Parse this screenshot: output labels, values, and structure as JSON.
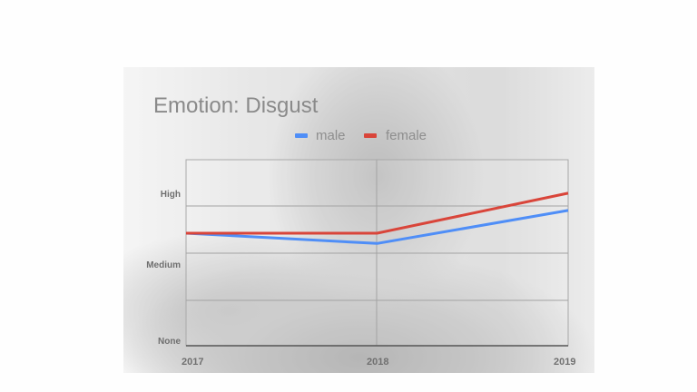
{
  "chart_data": {
    "type": "line",
    "title": "Emotion: Disgust",
    "xlabel": "",
    "ylabel": "",
    "categories": [
      "2017",
      "2018",
      "2019"
    ],
    "y_tick_labels": [
      "None",
      "Medium",
      "High"
    ],
    "ylim": [
      0,
      4
    ],
    "grid": true,
    "legend_position": "top",
    "series": [
      {
        "name": "male",
        "color": "#4f8ef7",
        "values": [
          2.42,
          2.2,
          2.91
        ]
      },
      {
        "name": "female",
        "color": "#d9453a",
        "values": [
          2.42,
          2.42,
          3.28
        ]
      }
    ]
  },
  "labels": {
    "title": "Emotion: Disgust",
    "legend_male": "male",
    "legend_female": "female",
    "y_high": "High",
    "y_medium": "Medium",
    "y_none": "None",
    "x_2017": "2017",
    "x_2018": "2018",
    "x_2019": "2019"
  }
}
